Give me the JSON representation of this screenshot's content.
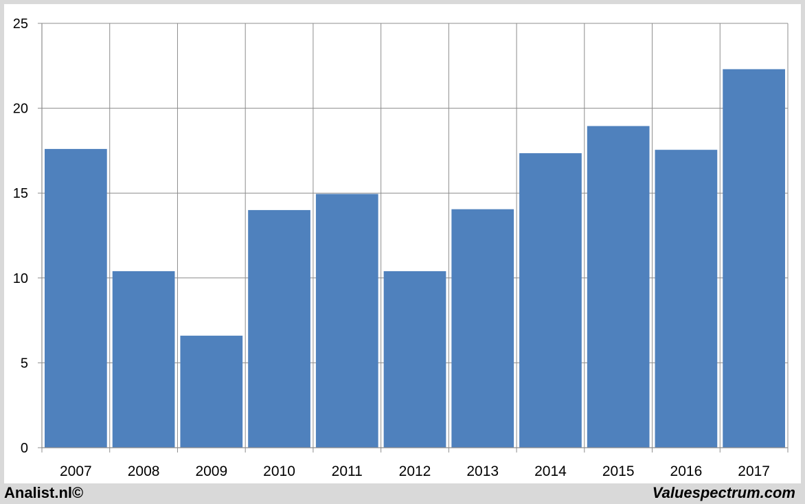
{
  "footer": {
    "left_text": "Analist.nl©",
    "right_text": "Valuespectrum.com"
  },
  "colors": {
    "bar": "#4f81bd",
    "grid": "#8c8c8c",
    "background": "#ffffff",
    "frame": "#d9d9d9"
  },
  "chart_data": {
    "type": "bar",
    "title": "",
    "xlabel": "",
    "ylabel": "",
    "categories": [
      "2007",
      "2008",
      "2009",
      "2010",
      "2011",
      "2012",
      "2013",
      "2014",
      "2015",
      "2016",
      "2017"
    ],
    "values": [
      17.6,
      10.4,
      6.6,
      14.0,
      14.95,
      10.4,
      14.05,
      17.35,
      18.95,
      17.55,
      22.3
    ],
    "ylim": [
      0,
      25
    ],
    "yticks": [
      0,
      5,
      10,
      15,
      20,
      25
    ],
    "grid": true
  }
}
